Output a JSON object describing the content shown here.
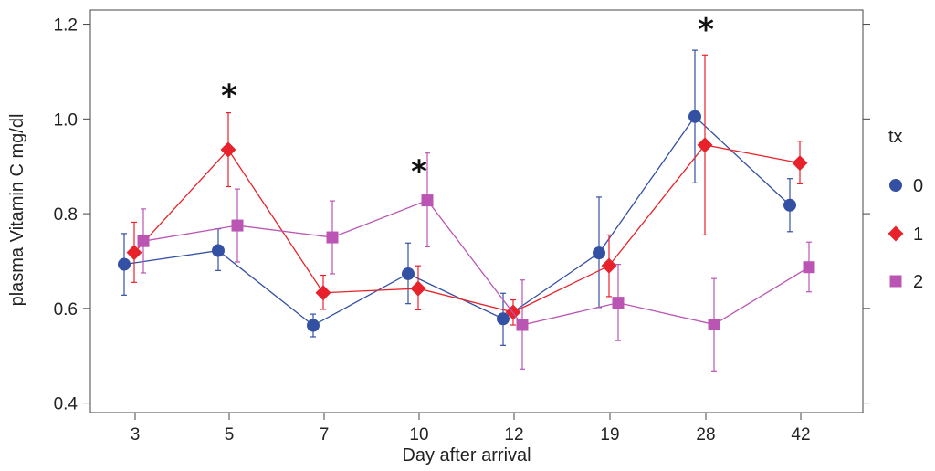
{
  "chart_data": {
    "type": "line",
    "xlabel": "Day after arrival",
    "ylabel": "plasma Vitamin C mg/dl",
    "categories": [
      "3",
      "5",
      "7",
      "10",
      "12",
      "19",
      "28",
      "42"
    ],
    "ylim": [
      0.38,
      1.23
    ],
    "yticks": [
      0.4,
      0.6,
      0.8,
      1.0,
      1.2
    ],
    "ytick_labels": [
      "0.4",
      "0.6",
      "0.8",
      "1.0",
      "1.2"
    ],
    "legend_title": "tx",
    "legend_position": "right",
    "significance": [
      {
        "category": "5",
        "y": 1.05,
        "label": "*"
      },
      {
        "category": "10",
        "y": 0.89,
        "label": "*"
      },
      {
        "category": "28",
        "y": 1.19,
        "label": "*"
      }
    ],
    "series": [
      {
        "name": "0",
        "marker": "circle",
        "color": "#3450a3",
        "values": [
          0.693,
          0.722,
          0.564,
          0.673,
          0.578,
          0.717,
          1.005,
          0.818
        ],
        "lower": [
          0.628,
          0.68,
          0.54,
          0.61,
          0.522,
          0.602,
          0.865,
          0.762
        ],
        "upper": [
          0.758,
          0.768,
          0.588,
          0.738,
          0.632,
          0.835,
          1.145,
          0.874
        ]
      },
      {
        "name": "1",
        "marker": "diamond",
        "color": "#e8222b",
        "values": [
          0.718,
          0.935,
          0.633,
          0.642,
          0.592,
          0.69,
          0.945,
          0.907
        ],
        "lower": [
          0.655,
          0.857,
          0.598,
          0.597,
          0.565,
          0.625,
          0.755,
          0.863
        ],
        "upper": [
          0.782,
          1.013,
          0.67,
          0.69,
          0.618,
          0.755,
          1.135,
          0.953
        ]
      },
      {
        "name": "2",
        "marker": "square",
        "color": "#bb55b3",
        "values": [
          0.742,
          0.775,
          0.75,
          0.828,
          0.565,
          0.612,
          0.566,
          0.687
        ],
        "lower": [
          0.675,
          0.698,
          0.673,
          0.73,
          0.472,
          0.532,
          0.468,
          0.635
        ],
        "upper": [
          0.81,
          0.852,
          0.827,
          0.928,
          0.66,
          0.693,
          0.663,
          0.74
        ]
      }
    ]
  }
}
